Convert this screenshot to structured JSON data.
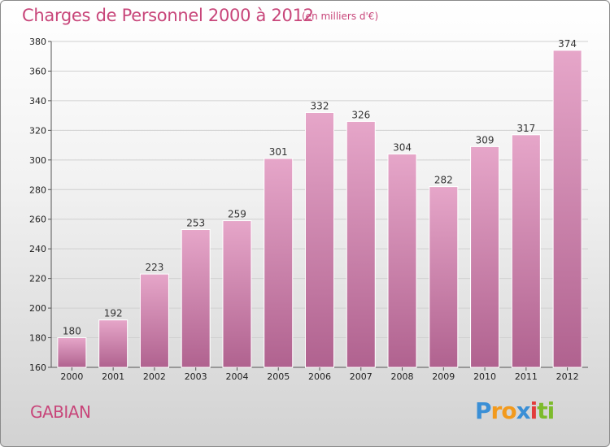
{
  "title": "Charges de Personnel 2000 à 2012",
  "subtitle": "(en milliers d'€)",
  "commune": "GABIAN",
  "logo": {
    "text": "Proxiti",
    "letters": [
      "P",
      "r",
      "o",
      "x",
      "i",
      "t",
      "i"
    ],
    "colors": [
      "#3a8fd6",
      "#f29a1d",
      "#f29a1d",
      "#3a8fd6",
      "#e23b3b",
      "#7dbb2c",
      "#7dbb2c"
    ]
  },
  "colors": {
    "accent": "#c8467a",
    "bar_top": "#e6a6c9",
    "bar_bottom": "#b0628f"
  },
  "chart_data": {
    "type": "bar",
    "title": "Charges de Personnel 2000 à 2012",
    "subtitle": "(en milliers d'€)",
    "categories": [
      "2000",
      "2001",
      "2002",
      "2003",
      "2004",
      "2005",
      "2006",
      "2007",
      "2008",
      "2009",
      "2010",
      "2011",
      "2012"
    ],
    "values": [
      180,
      192,
      223,
      253,
      259,
      301,
      332,
      326,
      304,
      282,
      309,
      317,
      374
    ],
    "ylim": [
      160,
      380
    ],
    "yticks": [
      160,
      180,
      200,
      220,
      240,
      260,
      280,
      300,
      320,
      340,
      360,
      380
    ],
    "grid": true
  }
}
